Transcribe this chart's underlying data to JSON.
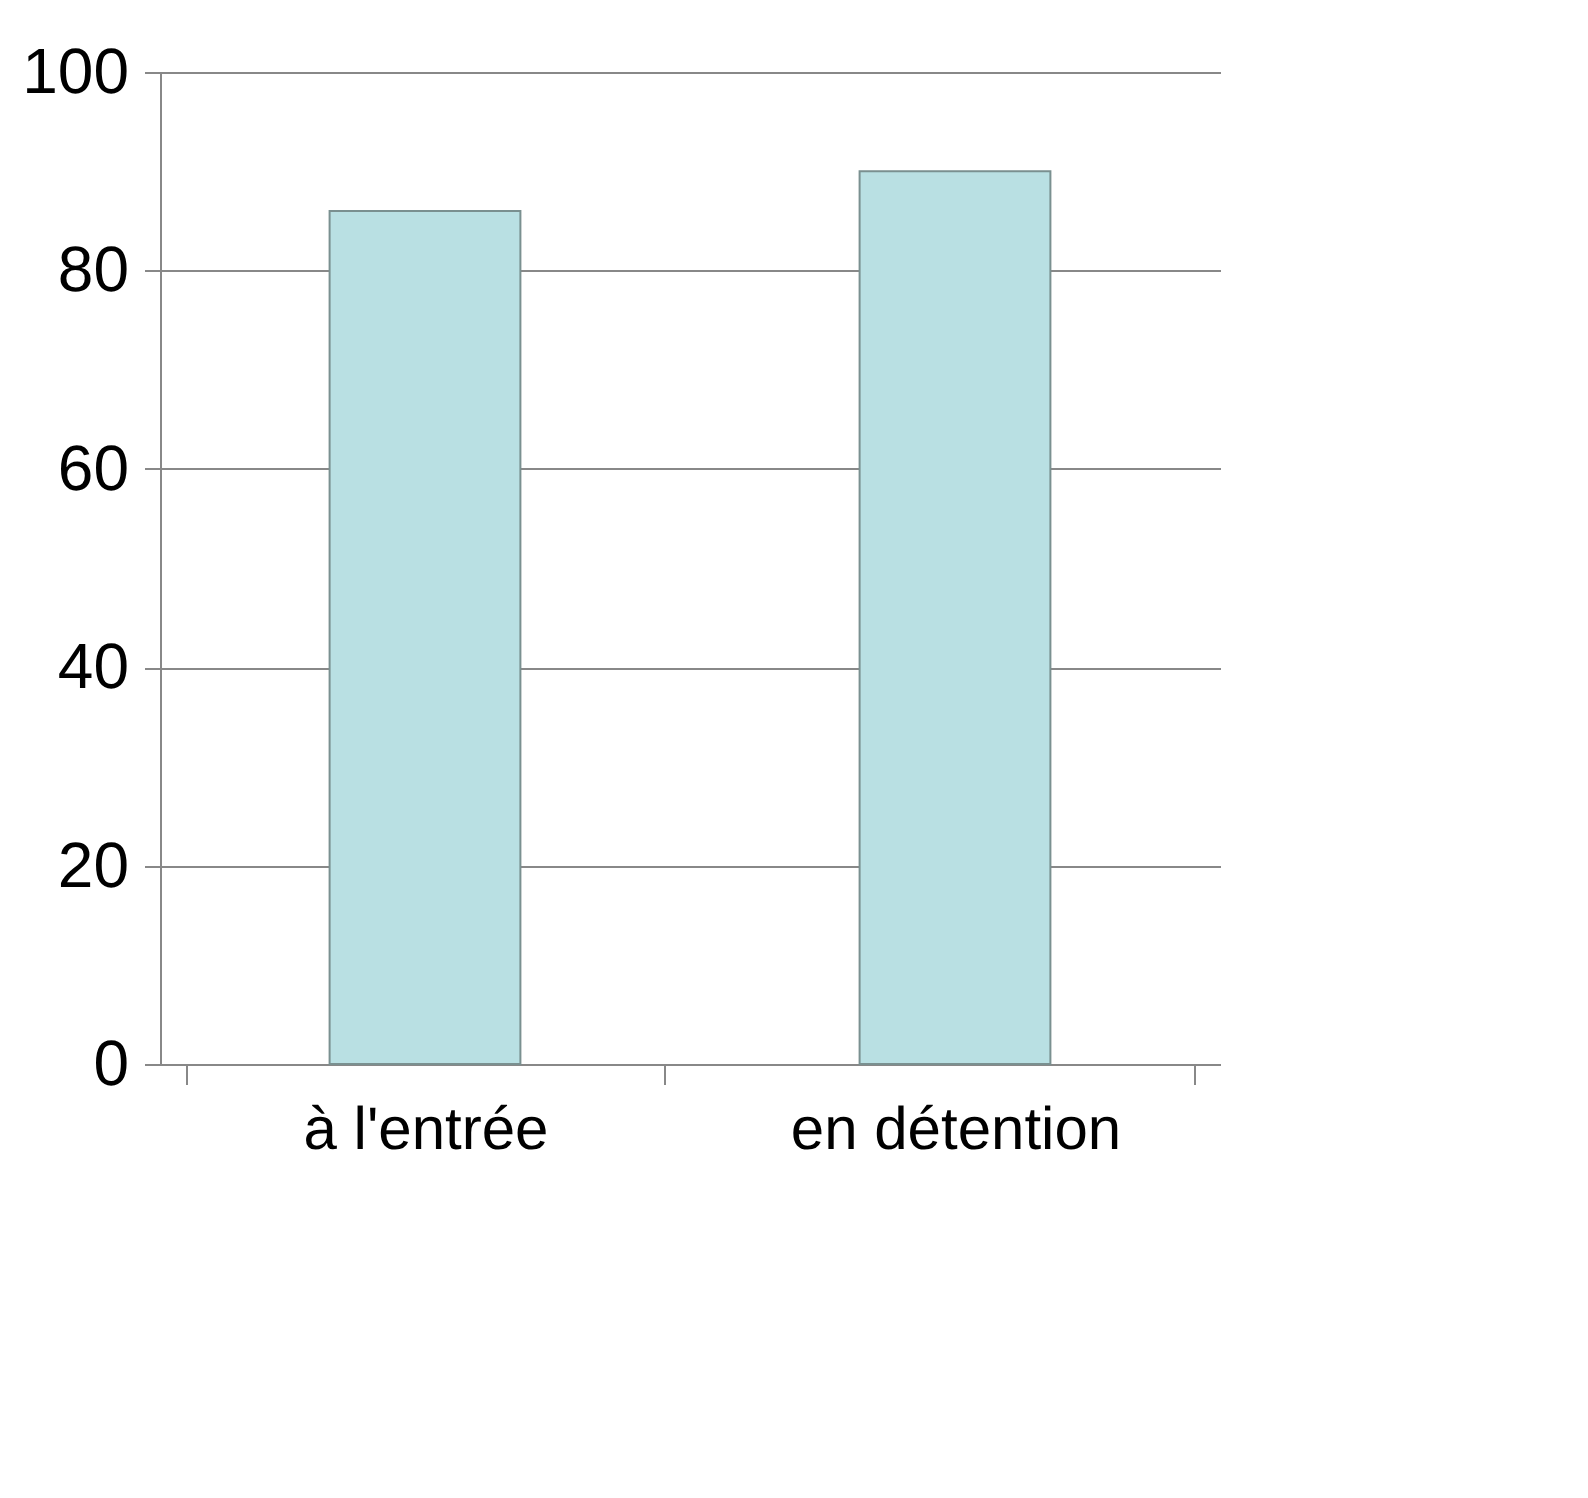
{
  "chart_data": {
    "type": "bar",
    "categories": [
      "à l'entrée",
      "en détention"
    ],
    "values": [
      86,
      90
    ],
    "color": "#b9e0e3",
    "ylim": [
      0,
      100
    ],
    "yticks": [
      0,
      20,
      40,
      60,
      80,
      100
    ],
    "grid": "y"
  }
}
